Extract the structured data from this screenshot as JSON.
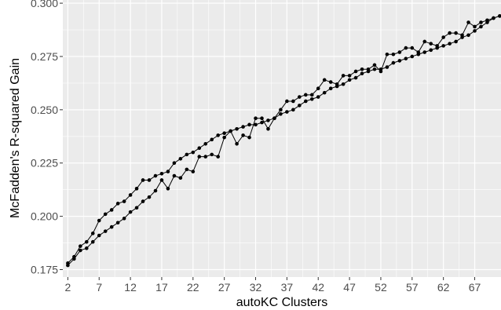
{
  "chart_data": {
    "type": "line",
    "title": "",
    "xlabel": "autoKC Clusters",
    "ylabel": "McFadden's R-squared Gain",
    "xlim": [
      1.2,
      71.2
    ],
    "ylim": [
      0.1715,
      0.3015
    ],
    "x_ticks": [
      2,
      7,
      12,
      17,
      22,
      27,
      32,
      37,
      42,
      47,
      52,
      57,
      62,
      67
    ],
    "x_tick_labels": [
      "2",
      "7",
      "12",
      "17",
      "22",
      "27",
      "32",
      "37",
      "42",
      "47",
      "52",
      "57",
      "62",
      "67"
    ],
    "y_ticks": [
      0.175,
      0.2,
      0.225,
      0.25,
      0.275,
      0.3
    ],
    "y_tick_labels": [
      "0.175",
      "0.200",
      "0.225",
      "0.250",
      "0.275",
      "0.300"
    ],
    "grid": true,
    "x": [
      2,
      3,
      4,
      5,
      6,
      7,
      8,
      9,
      10,
      11,
      12,
      13,
      14,
      15,
      16,
      17,
      18,
      19,
      20,
      21,
      22,
      23,
      24,
      25,
      26,
      27,
      28,
      29,
      30,
      31,
      32,
      33,
      34,
      35,
      36,
      37,
      38,
      39,
      40,
      41,
      42,
      43,
      44,
      45,
      46,
      47,
      48,
      49,
      50,
      51,
      52,
      53,
      54,
      55,
      56,
      57,
      58,
      59,
      60,
      61,
      62,
      63,
      64,
      65,
      66,
      67,
      68,
      69,
      70,
      71
    ],
    "series": [
      {
        "values": [
          0.178,
          0.181,
          0.186,
          0.188,
          0.192,
          0.198,
          0.201,
          0.203,
          0.206,
          0.207,
          0.21,
          0.213,
          0.217,
          0.217,
          0.219,
          0.22,
          0.221,
          0.225,
          0.227,
          0.229,
          0.23,
          0.232,
          0.234,
          0.236,
          0.238,
          0.239,
          0.24,
          0.241,
          0.242,
          0.243,
          0.243,
          0.244,
          0.245,
          0.246,
          0.248,
          0.249,
          0.25,
          0.252,
          0.254,
          0.255,
          0.256,
          0.258,
          0.26,
          0.261,
          0.262,
          0.264,
          0.265,
          0.267,
          0.268,
          0.269,
          0.269,
          0.27,
          0.272,
          0.273,
          0.274,
          0.275,
          0.276,
          0.277,
          0.278,
          0.279,
          0.28,
          0.281,
          0.282,
          0.284,
          0.285,
          0.287,
          0.289,
          0.291,
          0.293,
          0.294
        ]
      },
      {
        "values": [
          0.177,
          0.18,
          0.184,
          0.185,
          0.188,
          0.191,
          0.193,
          0.195,
          0.197,
          0.199,
          0.202,
          0.204,
          0.207,
          0.209,
          0.212,
          0.217,
          0.213,
          0.219,
          0.218,
          0.222,
          0.221,
          0.228,
          0.228,
          0.229,
          0.228,
          0.237,
          0.24,
          0.234,
          0.238,
          0.237,
          0.246,
          0.246,
          0.241,
          0.246,
          0.25,
          0.254,
          0.254,
          0.256,
          0.257,
          0.257,
          0.26,
          0.264,
          0.263,
          0.262,
          0.266,
          0.266,
          0.268,
          0.269,
          0.269,
          0.271,
          0.268,
          0.276,
          0.276,
          0.277,
          0.279,
          0.279,
          0.277,
          0.282,
          0.281,
          0.28,
          0.284,
          0.286,
          0.286,
          0.285,
          0.291,
          0.289,
          0.291,
          0.292,
          0.293,
          0.294
        ]
      }
    ]
  }
}
